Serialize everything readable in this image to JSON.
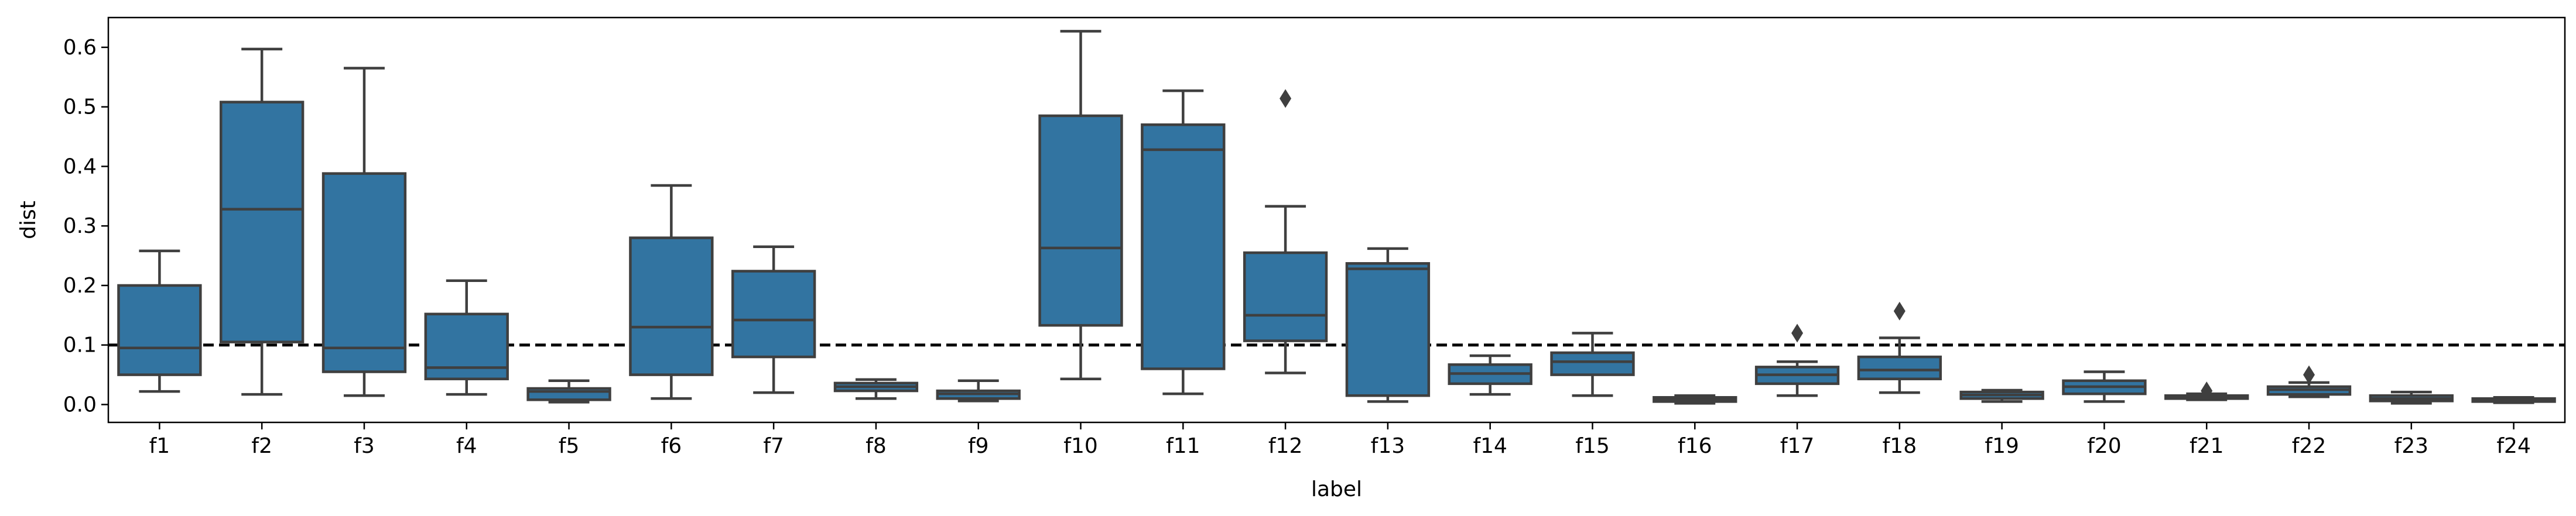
{
  "chart_data": {
    "type": "box",
    "xlabel": "label",
    "ylabel": "dist",
    "ylim": [
      -0.03,
      0.65
    ],
    "yticks": [
      0.0,
      0.1,
      0.2,
      0.3,
      0.4,
      0.5,
      0.6
    ],
    "ytick_labels": [
      "0.0",
      "0.1",
      "0.2",
      "0.3",
      "0.4",
      "0.5",
      "0.6"
    ],
    "reference_line": {
      "y": 0.1,
      "style": "dashed",
      "color": "#000000"
    },
    "box_color": "#3274a1",
    "edge_color": "#3f3f3f",
    "categories": [
      "f1",
      "f2",
      "f3",
      "f4",
      "f5",
      "f6",
      "f7",
      "f8",
      "f9",
      "f10",
      "f11",
      "f12",
      "f13",
      "f14",
      "f15",
      "f16",
      "f17",
      "f18",
      "f19",
      "f20",
      "f21",
      "f22",
      "f23",
      "f24"
    ],
    "boxes": [
      {
        "label": "f1",
        "whislo": 0.022,
        "q1": 0.05,
        "med": 0.095,
        "q3": 0.2,
        "whishi": 0.258,
        "fliers": []
      },
      {
        "label": "f2",
        "whislo": 0.017,
        "q1": 0.105,
        "med": 0.328,
        "q3": 0.508,
        "whishi": 0.597,
        "fliers": []
      },
      {
        "label": "f3",
        "whislo": 0.015,
        "q1": 0.055,
        "med": 0.095,
        "q3": 0.388,
        "whishi": 0.565,
        "fliers": []
      },
      {
        "label": "f4",
        "whislo": 0.017,
        "q1": 0.043,
        "med": 0.062,
        "q3": 0.152,
        "whishi": 0.208,
        "fliers": []
      },
      {
        "label": "f5",
        "whislo": 0.004,
        "q1": 0.008,
        "med": 0.022,
        "q3": 0.027,
        "whishi": 0.04,
        "fliers": []
      },
      {
        "label": "f6",
        "whislo": 0.01,
        "q1": 0.05,
        "med": 0.13,
        "q3": 0.28,
        "whishi": 0.368,
        "fliers": []
      },
      {
        "label": "f7",
        "whislo": 0.02,
        "q1": 0.08,
        "med": 0.142,
        "q3": 0.224,
        "whishi": 0.265,
        "fliers": []
      },
      {
        "label": "f8",
        "whislo": 0.01,
        "q1": 0.023,
        "med": 0.03,
        "q3": 0.036,
        "whishi": 0.042,
        "fliers": []
      },
      {
        "label": "f9",
        "whislo": 0.006,
        "q1": 0.01,
        "med": 0.018,
        "q3": 0.023,
        "whishi": 0.04,
        "fliers": []
      },
      {
        "label": "f10",
        "whislo": 0.043,
        "q1": 0.133,
        "med": 0.263,
        "q3": 0.485,
        "whishi": 0.627,
        "fliers": []
      },
      {
        "label": "f11",
        "whislo": 0.018,
        "q1": 0.06,
        "med": 0.428,
        "q3": 0.47,
        "whishi": 0.527,
        "fliers": []
      },
      {
        "label": "f12",
        "whislo": 0.053,
        "q1": 0.107,
        "med": 0.15,
        "q3": 0.255,
        "whishi": 0.333,
        "fliers": [
          0.514
        ]
      },
      {
        "label": "f13",
        "whislo": 0.005,
        "q1": 0.015,
        "med": 0.228,
        "q3": 0.237,
        "whishi": 0.262,
        "fliers": []
      },
      {
        "label": "f14",
        "whislo": 0.017,
        "q1": 0.035,
        "med": 0.052,
        "q3": 0.067,
        "whishi": 0.082,
        "fliers": []
      },
      {
        "label": "f15",
        "whislo": 0.015,
        "q1": 0.05,
        "med": 0.072,
        "q3": 0.087,
        "whishi": 0.12,
        "fliers": []
      },
      {
        "label": "f16",
        "whislo": 0.002,
        "q1": 0.005,
        "med": 0.008,
        "q3": 0.012,
        "whishi": 0.015,
        "fliers": []
      },
      {
        "label": "f17",
        "whislo": 0.015,
        "q1": 0.035,
        "med": 0.05,
        "q3": 0.063,
        "whishi": 0.072,
        "fliers": [
          0.12
        ]
      },
      {
        "label": "f18",
        "whislo": 0.02,
        "q1": 0.043,
        "med": 0.058,
        "q3": 0.08,
        "whishi": 0.112,
        "fliers": [
          0.157
        ]
      },
      {
        "label": "f19",
        "whislo": 0.005,
        "q1": 0.01,
        "med": 0.016,
        "q3": 0.021,
        "whishi": 0.024,
        "fliers": []
      },
      {
        "label": "f20",
        "whislo": 0.005,
        "q1": 0.018,
        "med": 0.03,
        "q3": 0.04,
        "whishi": 0.055,
        "fliers": []
      },
      {
        "label": "f21",
        "whislo": 0.008,
        "q1": 0.01,
        "med": 0.013,
        "q3": 0.015,
        "whishi": 0.018,
        "fliers": [
          0.023
        ]
      },
      {
        "label": "f22",
        "whislo": 0.013,
        "q1": 0.017,
        "med": 0.025,
        "q3": 0.03,
        "whishi": 0.037,
        "fliers": [
          0.05
        ]
      },
      {
        "label": "f23",
        "whislo": 0.002,
        "q1": 0.006,
        "med": 0.01,
        "q3": 0.015,
        "whishi": 0.021,
        "fliers": []
      },
      {
        "label": "f24",
        "whislo": 0.003,
        "q1": 0.005,
        "med": 0.008,
        "q3": 0.01,
        "whishi": 0.012,
        "fliers": []
      }
    ]
  }
}
